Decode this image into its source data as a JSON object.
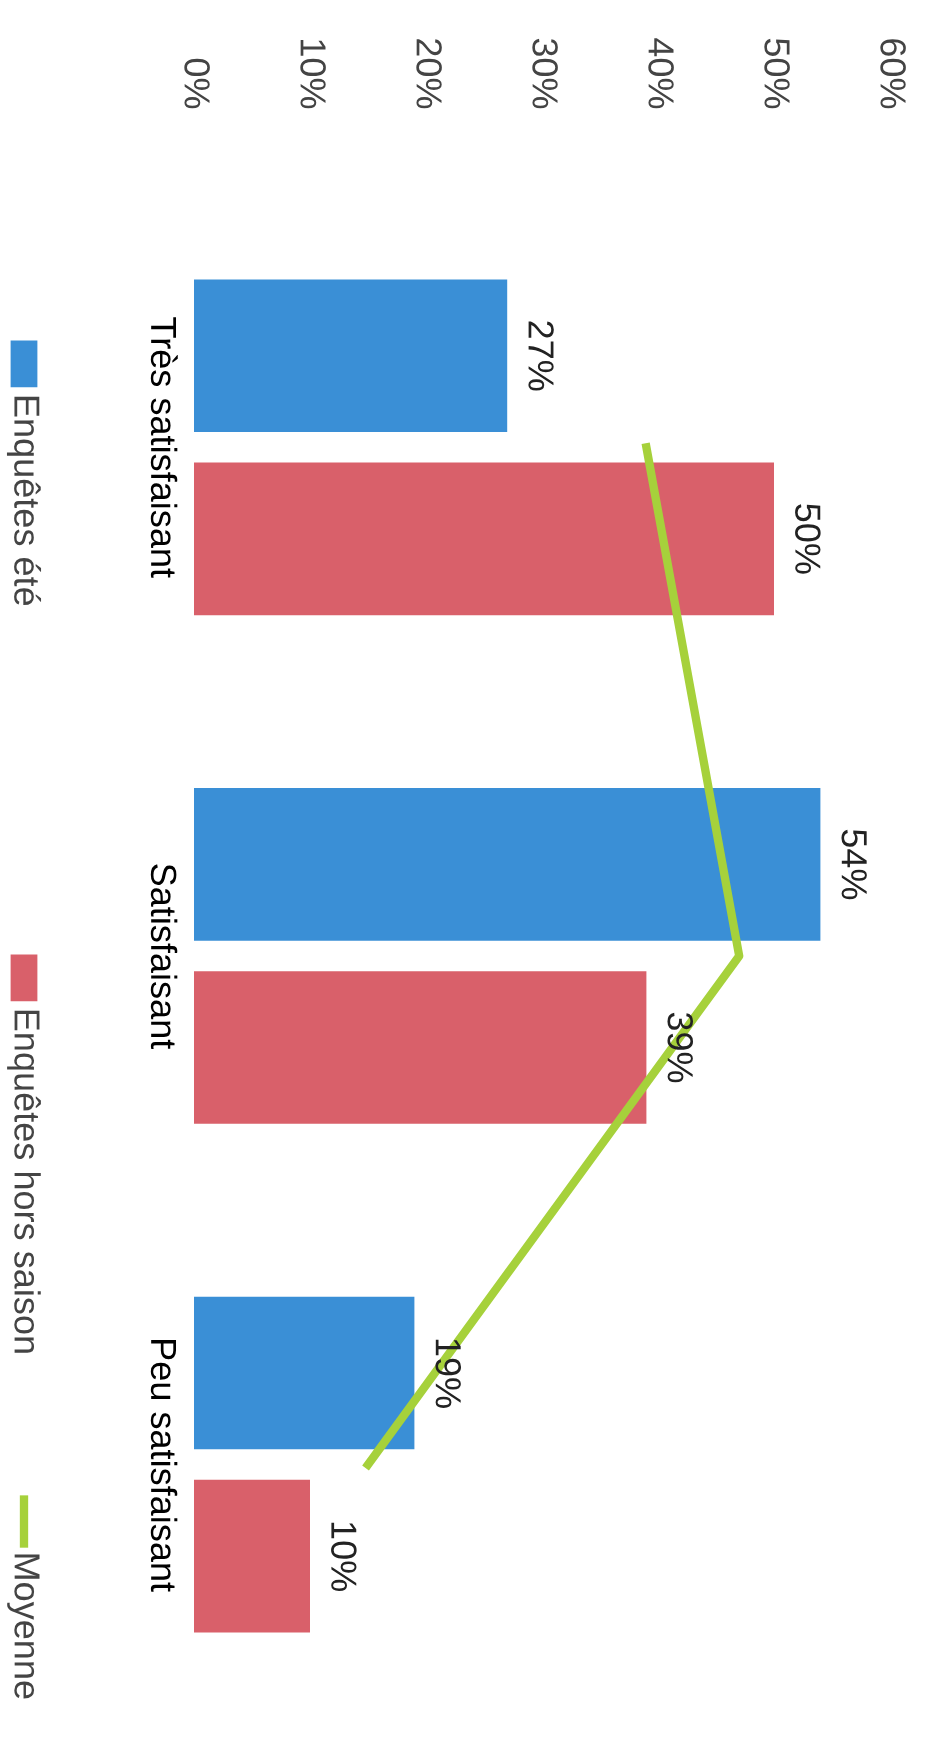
{
  "chart_data": {
    "type": "bar",
    "orientation": "horizontal",
    "categories": [
      "Très satisfaisant",
      "Satisfaisant",
      "Peu satisfaisant"
    ],
    "series": [
      {
        "name": "Enquêtes été",
        "color": "#3a8fd6",
        "values": [
          27,
          54,
          19
        ],
        "value_labels": [
          "27%",
          "54%",
          "19%"
        ]
      },
      {
        "name": "Enquêtes hors saison",
        "color": "#d9606a",
        "values": [
          50,
          39,
          10
        ],
        "value_labels": [
          "50%",
          "39%",
          "10%"
        ]
      },
      {
        "name": "Moyenne",
        "type": "line",
        "color": "#a6d13b",
        "values": [
          39,
          47,
          15
        ]
      }
    ],
    "xlim": [
      0,
      60
    ],
    "xticks": [
      {
        "value": 0,
        "label": "0%"
      },
      {
        "value": 10,
        "label": "10%"
      },
      {
        "value": 20,
        "label": "20%"
      },
      {
        "value": 30,
        "label": "30%"
      },
      {
        "value": 40,
        "label": "40%"
      },
      {
        "value": 50,
        "label": "50%"
      },
      {
        "value": 60,
        "label": "60%"
      }
    ],
    "grid": false,
    "legend": "left"
  }
}
